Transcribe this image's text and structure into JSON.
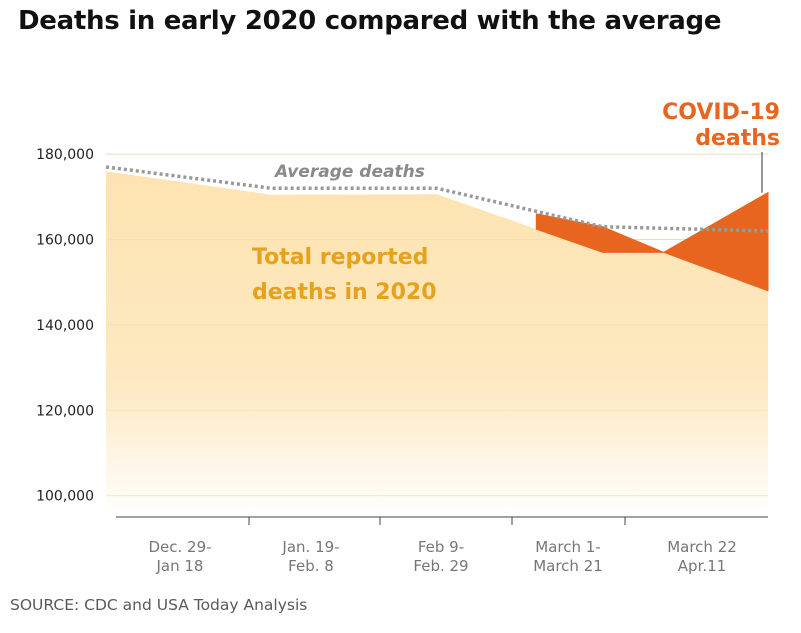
{
  "title": "Deaths in early 2020 compared with the average",
  "source": "SOURCE: CDC and USA Today Analysis",
  "chart_data": {
    "type": "area",
    "categories": [
      [
        "Dec. 29-",
        "Jan 18"
      ],
      [
        "Jan. 19-",
        "Feb. 8"
      ],
      [
        "Feb 9-",
        "Feb. 29"
      ],
      [
        "March 1-",
        "March 21"
      ],
      [
        "March 22",
        "Apr.11"
      ]
    ],
    "yticks": [
      100000,
      120000,
      140000,
      160000,
      180000
    ],
    "ytick_labels": [
      "100,000",
      "120,000",
      "140,000",
      "160,000",
      "180,000"
    ],
    "ylim": [
      95000,
      188000
    ],
    "grid": true,
    "series": [
      {
        "name": "Total reported deaths in 2020",
        "label": [
          "Total reported",
          "deaths in 2020"
        ],
        "x": [
          0,
          1,
          2,
          3,
          3.37,
          4
        ],
        "values": [
          176000,
          170500,
          170600,
          157000,
          157000,
          148000
        ],
        "color": "#fde3b0"
      },
      {
        "name": "Average deaths",
        "x": [
          0,
          1,
          2,
          3,
          4
        ],
        "values": [
          177000,
          172000,
          172000,
          163000,
          162000
        ],
        "color": "#999999"
      },
      {
        "name": "COVID-19 deaths",
        "label": [
          "COVID-19",
          "deaths"
        ],
        "x": [
          2.6,
          3,
          3.37,
          4
        ],
        "values": [
          166000,
          163000,
          157000,
          171000
        ],
        "color": "#e8651f"
      }
    ],
    "annotation_avg": "Average deaths"
  }
}
